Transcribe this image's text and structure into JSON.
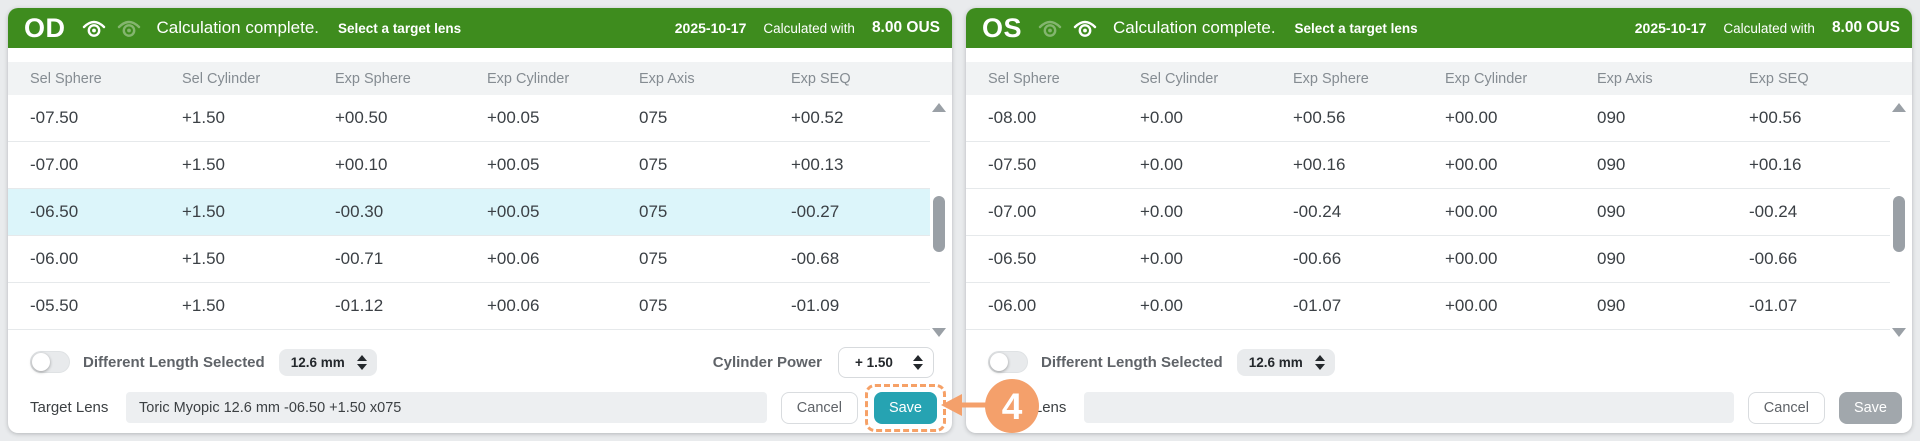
{
  "colors": {
    "header_green": "#3e8c1e",
    "selected_row_cyan": "#dcf5fa",
    "save_button_teal": "#26a3b2",
    "save_button_disabled_gray": "#a1a7ac",
    "annotation_orange": "#f4a06b",
    "scrollbar_gray": "#9aa0a6"
  },
  "panels": [
    {
      "id": "od",
      "eye_label": "OD",
      "eye_icon_states": [
        "solid",
        "faded"
      ],
      "header": {
        "status": "Calculation complete.",
        "instruction": "Select a target lens",
        "date": "2025-10-17",
        "calculated_with_label": "Calculated with",
        "calculated_with_value": "8.00 OUS"
      },
      "table": {
        "columns": [
          "Sel Sphere",
          "Sel Cylinder",
          "Exp Sphere",
          "Exp Cylinder",
          "Exp Axis",
          "Exp SEQ"
        ],
        "rows": [
          [
            "-07.50",
            "+1.50",
            "+00.50",
            "+00.05",
            "075",
            "+00.52"
          ],
          [
            "-07.00",
            "+1.50",
            "+00.10",
            "+00.05",
            "075",
            "+00.13"
          ],
          [
            "-06.50",
            "+1.50",
            "-00.30",
            "+00.05",
            "075",
            "-00.27"
          ],
          [
            "-06.00",
            "+1.50",
            "-00.71",
            "+00.06",
            "075",
            "-00.68"
          ],
          [
            "-05.50",
            "+1.50",
            "-01.12",
            "+00.06",
            "075",
            "-01.09"
          ]
        ],
        "selected_row_index": 2
      },
      "controls": {
        "different_length_label": "Different Length Selected",
        "toggle_on": false,
        "length_value": "12.6 mm",
        "cylinder_power_label": "Cylinder Power",
        "cylinder_power_value": "+ 1.50"
      },
      "footer": {
        "target_lens_label": "Target Lens",
        "target_lens_value": "Toric Myopic 12.6 mm -06.50 +1.50 x075",
        "cancel_label": "Cancel",
        "save_label": "Save",
        "save_enabled": true
      }
    },
    {
      "id": "os",
      "eye_label": "OS",
      "eye_icon_states": [
        "faded",
        "solid"
      ],
      "header": {
        "status": "Calculation complete.",
        "instruction": "Select a target lens",
        "date": "2025-10-17",
        "calculated_with_label": "Calculated with",
        "calculated_with_value": "8.00 OUS"
      },
      "table": {
        "columns": [
          "Sel Sphere",
          "Sel Cylinder",
          "Exp Sphere",
          "Exp Cylinder",
          "Exp Axis",
          "Exp SEQ"
        ],
        "rows": [
          [
            "-08.00",
            "+0.00",
            "+00.56",
            "+00.00",
            "090",
            "+00.56"
          ],
          [
            "-07.50",
            "+0.00",
            "+00.16",
            "+00.00",
            "090",
            "+00.16"
          ],
          [
            "-07.00",
            "+0.00",
            "-00.24",
            "+00.00",
            "090",
            "-00.24"
          ],
          [
            "-06.50",
            "+0.00",
            "-00.66",
            "+00.00",
            "090",
            "-00.66"
          ],
          [
            "-06.00",
            "+0.00",
            "-01.07",
            "+00.00",
            "090",
            "-01.07"
          ]
        ],
        "selected_row_index": null
      },
      "controls": {
        "different_length_label": "Different Length Selected",
        "toggle_on": false,
        "length_value": "12.6 mm",
        "cylinder_power_label": null,
        "cylinder_power_value": null
      },
      "footer": {
        "target_lens_label": "Target Lens",
        "target_lens_value": "",
        "cancel_label": "Cancel",
        "save_label": "Save",
        "save_enabled": false
      }
    }
  ],
  "annotation": {
    "step_number": "4"
  }
}
